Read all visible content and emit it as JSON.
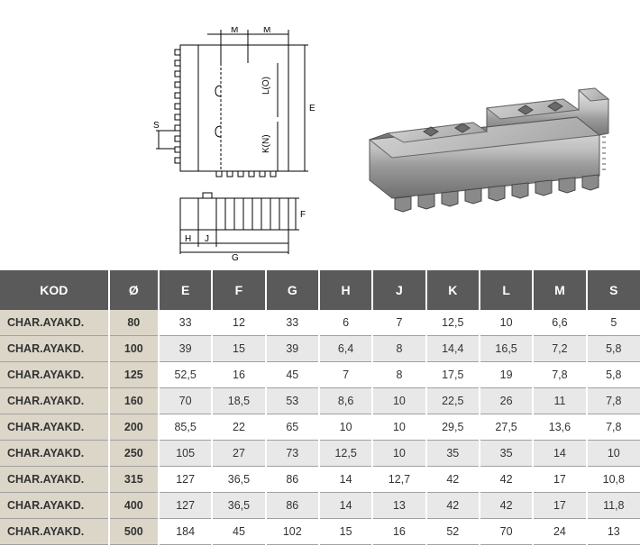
{
  "diagram": {
    "labels": {
      "M1": "M",
      "M2": "M",
      "E": "E",
      "LO": "L(O)",
      "KN": "K(N)",
      "S": "S",
      "F": "F",
      "H": "H",
      "J": "J",
      "G": "G"
    }
  },
  "table": {
    "headers": [
      "KOD",
      "Ø",
      "E",
      "F",
      "G",
      "H",
      "J",
      "K",
      "L",
      "M",
      "S"
    ],
    "rows": [
      {
        "kod": "CHAR.AYAKD.",
        "dia": "80",
        "vals": [
          "33",
          "12",
          "33",
          "6",
          "7",
          "12,5",
          "10",
          "6,6",
          "5"
        ]
      },
      {
        "kod": "CHAR.AYAKD.",
        "dia": "100",
        "vals": [
          "39",
          "15",
          "39",
          "6,4",
          "8",
          "14,4",
          "16,5",
          "7,2",
          "5,8"
        ]
      },
      {
        "kod": "CHAR.AYAKD.",
        "dia": "125",
        "vals": [
          "52,5",
          "16",
          "45",
          "7",
          "8",
          "17,5",
          "19",
          "7,8",
          "5,8"
        ]
      },
      {
        "kod": "CHAR.AYAKD.",
        "dia": "160",
        "vals": [
          "70",
          "18,5",
          "53",
          "8,6",
          "10",
          "22,5",
          "26",
          "11",
          "7,8"
        ]
      },
      {
        "kod": "CHAR.AYAKD.",
        "dia": "200",
        "vals": [
          "85,5",
          "22",
          "65",
          "10",
          "10",
          "29,5",
          "27,5",
          "13,6",
          "7,8"
        ]
      },
      {
        "kod": "CHAR.AYAKD.",
        "dia": "250",
        "vals": [
          "105",
          "27",
          "73",
          "12,5",
          "10",
          "35",
          "35",
          "14",
          "10"
        ]
      },
      {
        "kod": "CHAR.AYAKD.",
        "dia": "315",
        "vals": [
          "127",
          "36,5",
          "86",
          "14",
          "12,7",
          "42",
          "42",
          "17",
          "10,8"
        ]
      },
      {
        "kod": "CHAR.AYAKD.",
        "dia": "400",
        "vals": [
          "127",
          "36,5",
          "86",
          "14",
          "13",
          "42",
          "42",
          "17",
          "11,8"
        ]
      },
      {
        "kod": "CHAR.AYAKD.",
        "dia": "500",
        "vals": [
          "184",
          "45",
          "102",
          "15",
          "16",
          "52",
          "70",
          "24",
          "13"
        ]
      }
    ]
  },
  "colors": {
    "header_bg": "#5a5a5a",
    "header_fg": "#ffffff",
    "kod_bg": "#dcd6c9",
    "row_light": "#ffffff",
    "row_dark": "#e8e8e8",
    "border": "#a0a0a0"
  }
}
